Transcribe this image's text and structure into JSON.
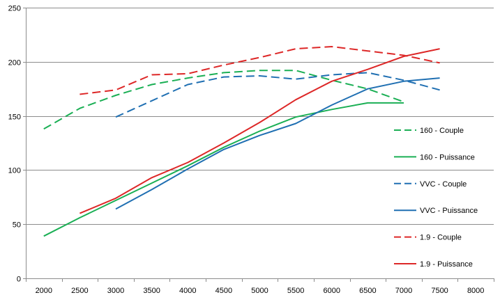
{
  "chart_data": {
    "type": "line",
    "title": "",
    "xlabel": "",
    "ylabel": "",
    "x_categories": [
      "2000",
      "2500",
      "3000",
      "3500",
      "4000",
      "4500",
      "5000",
      "5500",
      "6000",
      "6500",
      "7000",
      "7500",
      "8000"
    ],
    "ylim": [
      0,
      250
    ],
    "y_ticks": [
      "0",
      "50",
      "100",
      "150",
      "200",
      "250"
    ],
    "grid": "horizontal",
    "legend_position": "right",
    "series": [
      {
        "name": "160 - Couple",
        "color": "#1aaf54",
        "dash": true,
        "x": [
          2000,
          2500,
          3000,
          3500,
          4000,
          4500,
          5000,
          5500,
          6000,
          6500,
          7000
        ],
        "y": [
          138,
          157,
          169,
          179,
          185,
          190,
          192,
          192,
          183,
          175,
          163
        ]
      },
      {
        "name": "160 - Puissance",
        "color": "#1aaf54",
        "dash": false,
        "x": [
          2000,
          2500,
          3000,
          3500,
          4000,
          4500,
          5000,
          5500,
          6000,
          6500,
          7000
        ],
        "y": [
          39,
          56,
          72,
          88,
          104,
          121,
          136,
          149,
          156,
          162,
          162
        ]
      },
      {
        "name": "VVC - Couple",
        "color": "#1f6fb2",
        "dash": true,
        "x": [
          3000,
          3500,
          4000,
          4500,
          5000,
          5500,
          6000,
          6500,
          7000,
          7500
        ],
        "y": [
          149,
          164,
          179,
          186,
          187,
          184,
          188,
          190,
          183,
          174
        ]
      },
      {
        "name": "VVC - Puissance",
        "color": "#1f6fb2",
        "dash": false,
        "x": [
          3000,
          3500,
          4000,
          4500,
          5000,
          5500,
          6000,
          6500,
          7000,
          7500
        ],
        "y": [
          64,
          82,
          101,
          119,
          132,
          143,
          160,
          175,
          182,
          185
        ]
      },
      {
        "name": "1.9 - Couple",
        "color": "#dd2727",
        "dash": true,
        "x": [
          2500,
          3000,
          3500,
          4000,
          4500,
          5000,
          5500,
          6000,
          6500,
          7000,
          7500
        ],
        "y": [
          170,
          174,
          188,
          189,
          197,
          204,
          212,
          214,
          210,
          206,
          199
        ]
      },
      {
        "name": "1.9 - Puissance",
        "color": "#dd2727",
        "dash": false,
        "x": [
          2500,
          3000,
          3500,
          4000,
          4500,
          5000,
          5500,
          6000,
          6500,
          7000,
          7500
        ],
        "y": [
          60,
          74,
          93,
          107,
          125,
          144,
          165,
          182,
          193,
          205,
          212
        ]
      }
    ]
  }
}
